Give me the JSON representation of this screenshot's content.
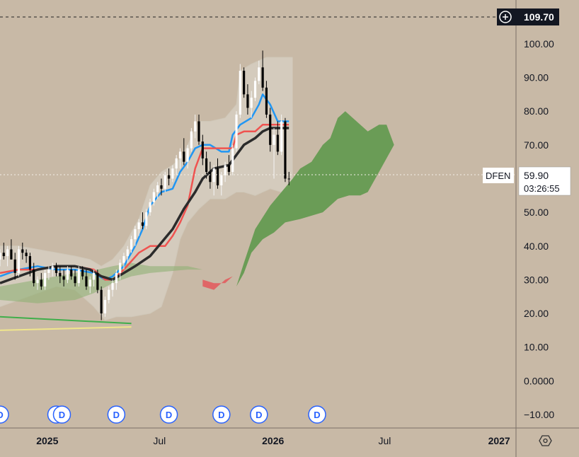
{
  "chart_data": {
    "type": "candlestick",
    "symbol": "DFEN",
    "last_price": "59.90",
    "countdown": "03:26:55",
    "crosshair_price": "109.70",
    "y_ticks": [
      "100.00",
      "90.00",
      "80.00",
      "70.00",
      "60.00",
      "50.00",
      "40.00",
      "30.00",
      "20.00",
      "10.00",
      "0.0000",
      "−10.00"
    ],
    "y_tick_values": [
      100,
      90,
      80,
      70,
      60,
      50,
      40,
      30,
      20,
      10,
      0,
      -10
    ],
    "ylim": [
      -14,
      113
    ],
    "x_ticks": [
      {
        "label": "2025",
        "bold": true,
        "t": 0.52
      },
      {
        "label": "Jul",
        "bold": false,
        "t": 6.5
      },
      {
        "label": "2026",
        "bold": true,
        "t": 12.55
      },
      {
        "label": "Jul",
        "bold": false,
        "t": 18.5
      },
      {
        "label": "2027",
        "bold": true,
        "t": 24.6
      }
    ],
    "dividend_marker_label": "D",
    "dividend_marker_t": [
      -2.0,
      1.0,
      1.3,
      4.2,
      7.0,
      9.8,
      11.8,
      14.9
    ],
    "candles": [
      [
        -2.0,
        36,
        39,
        34,
        38
      ],
      [
        -1.8,
        38,
        41,
        36,
        37
      ],
      [
        -1.6,
        37,
        40,
        34,
        39
      ],
      [
        -1.4,
        39,
        42,
        37,
        36
      ],
      [
        -1.2,
        36,
        38,
        30,
        32
      ],
      [
        -1.0,
        32,
        40,
        31,
        39
      ],
      [
        -0.8,
        39,
        41,
        36,
        38
      ],
      [
        -0.6,
        38,
        39,
        35,
        37
      ],
      [
        -0.4,
        37,
        38,
        31,
        33
      ],
      [
        -0.2,
        33,
        35,
        28,
        29
      ],
      [
        0.0,
        29,
        31,
        27,
        30
      ],
      [
        0.2,
        30,
        32,
        27,
        28
      ],
      [
        0.4,
        28,
        33,
        27,
        32
      ],
      [
        0.6,
        32,
        34,
        30,
        33
      ],
      [
        0.8,
        33,
        35,
        31,
        34
      ],
      [
        1.0,
        34,
        35,
        31,
        32
      ],
      [
        1.2,
        32,
        34,
        29,
        31
      ],
      [
        1.4,
        31,
        33,
        28,
        30
      ],
      [
        1.6,
        30,
        34,
        29,
        33
      ],
      [
        1.8,
        33,
        34,
        30,
        31
      ],
      [
        2.0,
        31,
        33,
        28,
        29
      ],
      [
        2.2,
        29,
        34,
        28,
        33
      ],
      [
        2.4,
        33,
        34,
        30,
        31
      ],
      [
        2.6,
        31,
        33,
        27,
        28
      ],
      [
        2.8,
        28,
        31,
        26,
        30
      ],
      [
        3.0,
        30,
        33,
        28,
        32
      ],
      [
        3.2,
        32,
        33,
        26,
        27
      ],
      [
        3.4,
        27,
        28,
        18,
        20
      ],
      [
        3.6,
        20,
        25,
        19,
        24
      ],
      [
        3.8,
        24,
        28,
        23,
        27
      ],
      [
        4.0,
        27,
        30,
        25,
        29
      ],
      [
        4.2,
        29,
        33,
        27,
        32
      ],
      [
        4.4,
        32,
        36,
        30,
        35
      ],
      [
        4.6,
        35,
        38,
        33,
        37
      ],
      [
        4.8,
        37,
        40,
        35,
        39
      ],
      [
        5.0,
        39,
        43,
        38,
        42
      ],
      [
        5.2,
        42,
        46,
        40,
        45
      ],
      [
        5.4,
        45,
        48,
        43,
        47
      ],
      [
        5.6,
        47,
        50,
        45,
        46
      ],
      [
        5.8,
        46,
        51,
        45,
        50
      ],
      [
        6.0,
        50,
        54,
        49,
        53
      ],
      [
        6.2,
        53,
        57,
        52,
        56
      ],
      [
        6.4,
        56,
        59,
        54,
        58
      ],
      [
        6.6,
        58,
        60,
        55,
        57
      ],
      [
        6.8,
        57,
        62,
        56,
        61
      ],
      [
        7.0,
        61,
        63,
        58,
        60
      ],
      [
        7.2,
        60,
        64,
        59,
        63
      ],
      [
        7.4,
        63,
        67,
        61,
        66
      ],
      [
        7.6,
        66,
        69,
        63,
        68
      ],
      [
        7.8,
        68,
        72,
        64,
        65
      ],
      [
        8.0,
        65,
        70,
        63,
        69
      ],
      [
        8.2,
        69,
        75,
        68,
        74
      ],
      [
        8.4,
        74,
        79,
        72,
        77
      ],
      [
        8.6,
        77,
        79,
        70,
        71
      ],
      [
        8.8,
        71,
        73,
        64,
        66
      ],
      [
        9.0,
        66,
        68,
        60,
        62
      ],
      [
        9.2,
        62,
        65,
        57,
        59
      ],
      [
        9.4,
        59,
        64,
        55,
        63
      ],
      [
        9.6,
        63,
        66,
        57,
        58
      ],
      [
        9.8,
        58,
        62,
        55,
        61
      ],
      [
        10.0,
        61,
        65,
        59,
        64
      ],
      [
        10.2,
        64,
        67,
        61,
        62
      ],
      [
        10.4,
        62,
        70,
        61,
        69
      ],
      [
        10.6,
        69,
        80,
        68,
        79
      ],
      [
        10.8,
        79,
        94,
        78,
        92
      ],
      [
        11.0,
        92,
        93,
        84,
        85
      ],
      [
        11.2,
        85,
        88,
        79,
        81
      ],
      [
        11.4,
        81,
        86,
        78,
        84
      ],
      [
        11.6,
        84,
        90,
        83,
        89
      ],
      [
        11.8,
        89,
        95,
        88,
        93
      ],
      [
        12.0,
        93,
        98,
        86,
        87
      ],
      [
        12.2,
        87,
        89,
        78,
        79
      ],
      [
        12.4,
        79,
        81,
        68,
        70
      ],
      [
        12.6,
        70,
        75,
        60,
        73
      ],
      [
        12.8,
        73,
        77,
        67,
        68
      ],
      [
        13.0,
        68,
        79,
        67,
        77
      ],
      [
        13.2,
        77,
        78,
        59,
        60
      ],
      [
        13.4,
        60,
        62,
        58,
        59.9
      ]
    ],
    "series": [
      {
        "name": "",
        "color": "#2196f3",
        "points": [
          [
            -2,
            31
          ],
          [
            -1,
            33
          ],
          [
            0,
            34
          ],
          [
            1,
            33
          ],
          [
            2,
            33
          ],
          [
            3,
            32
          ],
          [
            3.6,
            30
          ],
          [
            4,
            31
          ],
          [
            4.6,
            34
          ],
          [
            5.2,
            40
          ],
          [
            5.6,
            45
          ],
          [
            6,
            52
          ],
          [
            6.6,
            56
          ],
          [
            7.2,
            57
          ],
          [
            7.6,
            62
          ],
          [
            8,
            65
          ],
          [
            8.4,
            69
          ],
          [
            8.8,
            70
          ],
          [
            9.2,
            70
          ],
          [
            9.8,
            68
          ],
          [
            10.2,
            68
          ],
          [
            10.4,
            73
          ],
          [
            10.8,
            76
          ],
          [
            11.4,
            78
          ],
          [
            11.8,
            82
          ],
          [
            12,
            85
          ],
          [
            12.4,
            82
          ],
          [
            12.8,
            77
          ],
          [
            13.2,
            77
          ],
          [
            13.4,
            77
          ]
        ]
      },
      {
        "name": "",
        "color": "#ef5350",
        "points": [
          [
            -2,
            32
          ],
          [
            -1,
            33
          ],
          [
            0,
            33
          ],
          [
            1,
            34
          ],
          [
            2,
            34
          ],
          [
            3,
            33
          ],
          [
            3.6,
            30
          ],
          [
            4,
            30
          ],
          [
            4.6,
            33
          ],
          [
            5.4,
            38
          ],
          [
            6,
            40
          ],
          [
            6.8,
            40
          ],
          [
            7.2,
            43
          ],
          [
            7.6,
            47
          ],
          [
            8,
            52
          ],
          [
            8.4,
            63
          ],
          [
            8.8,
            69
          ],
          [
            9.2,
            69
          ],
          [
            10.4,
            69
          ],
          [
            10.6,
            73
          ],
          [
            11,
            74
          ],
          [
            11.6,
            74
          ],
          [
            12,
            76
          ],
          [
            12.6,
            76
          ],
          [
            13,
            76
          ],
          [
            13.4,
            76
          ]
        ]
      },
      {
        "name": "",
        "color": "#2b2b2b",
        "points": [
          [
            -2,
            29
          ],
          [
            -1,
            31
          ],
          [
            0,
            33
          ],
          [
            1,
            34
          ],
          [
            2,
            34
          ],
          [
            2.8,
            33
          ],
          [
            3.4,
            31
          ],
          [
            4,
            30
          ],
          [
            4.6,
            32
          ],
          [
            5.2,
            34
          ],
          [
            6,
            37
          ],
          [
            6.6,
            41
          ],
          [
            7.2,
            45
          ],
          [
            7.8,
            51
          ],
          [
            8.4,
            56
          ],
          [
            8.8,
            60
          ],
          [
            9.4,
            63
          ],
          [
            10.2,
            64
          ],
          [
            10.6,
            67
          ],
          [
            11,
            70
          ],
          [
            11.6,
            72
          ],
          [
            12,
            74
          ],
          [
            12.4,
            75
          ],
          [
            12.8,
            75
          ],
          [
            13.4,
            75
          ]
        ]
      }
    ],
    "bollinger_upper": [
      [
        -2,
        40
      ],
      [
        -1,
        40
      ],
      [
        0,
        39
      ],
      [
        1,
        38
      ],
      [
        2,
        37
      ],
      [
        2.8,
        36
      ],
      [
        3.4,
        34
      ],
      [
        4,
        36
      ],
      [
        4.6,
        40
      ],
      [
        5.4,
        48
      ],
      [
        6,
        58
      ],
      [
        6.6,
        62
      ],
      [
        7.2,
        64
      ],
      [
        7.6,
        66
      ],
      [
        8,
        70
      ],
      [
        8.6,
        77
      ],
      [
        9.2,
        77
      ],
      [
        10,
        78
      ],
      [
        10.6,
        82
      ],
      [
        10.8,
        92
      ],
      [
        11.4,
        94
      ],
      [
        12.2,
        96
      ],
      [
        13.6,
        96
      ]
    ],
    "bollinger_lower": [
      [
        -2,
        22
      ],
      [
        -1,
        24
      ],
      [
        0,
        26
      ],
      [
        1,
        28
      ],
      [
        2,
        27
      ],
      [
        3,
        22
      ],
      [
        3.6,
        18
      ],
      [
        4.2,
        19
      ],
      [
        5,
        19
      ],
      [
        6,
        20
      ],
      [
        6.6,
        22
      ],
      [
        7.2,
        32
      ],
      [
        7.6,
        42
      ],
      [
        8,
        47
      ],
      [
        8.6,
        51
      ],
      [
        9.2,
        54
      ],
      [
        10,
        54
      ],
      [
        10.6,
        56
      ],
      [
        11,
        56
      ],
      [
        11.6,
        55
      ],
      [
        12.4,
        57
      ],
      [
        13,
        56
      ],
      [
        13.6,
        57
      ]
    ],
    "cloud_bull": [
      [
        10.6,
        28
      ],
      [
        11,
        35
      ],
      [
        11.6,
        45
      ],
      [
        12.4,
        52
      ],
      [
        13,
        56
      ],
      [
        13.6,
        60
      ],
      [
        14,
        63
      ],
      [
        14.6,
        65
      ],
      [
        15.2,
        70
      ],
      [
        15.6,
        72
      ],
      [
        16,
        78
      ],
      [
        16.4,
        80
      ],
      [
        16.8,
        78
      ],
      [
        17.2,
        76
      ],
      [
        17.6,
        74
      ],
      [
        18.2,
        76
      ],
      [
        18.6,
        76
      ],
      [
        19,
        70
      ],
      [
        18.6,
        66
      ],
      [
        18.2,
        62
      ],
      [
        17.6,
        56
      ],
      [
        17.2,
        55
      ],
      [
        16.6,
        55
      ],
      [
        16,
        54
      ],
      [
        15.2,
        50
      ],
      [
        14.6,
        49
      ],
      [
        14,
        48
      ],
      [
        13.2,
        47
      ],
      [
        12.6,
        44
      ],
      [
        12,
        42
      ],
      [
        11.4,
        38
      ],
      [
        11,
        32
      ]
    ],
    "cloud_bear": [
      [
        8.8,
        30
      ],
      [
        9.4,
        29
      ],
      [
        10,
        29
      ],
      [
        10.4,
        31
      ],
      [
        10,
        30
      ],
      [
        9.4,
        27
      ],
      [
        8.8,
        28
      ]
    ],
    "cloud_old": [
      [
        -2,
        28
      ],
      [
        0,
        30
      ],
      [
        2,
        32
      ],
      [
        3.2,
        33
      ],
      [
        4,
        34
      ],
      [
        5,
        35
      ],
      [
        6,
        34
      ],
      [
        8,
        34
      ],
      [
        8.8,
        33
      ],
      [
        8,
        33
      ],
      [
        6,
        32
      ],
      [
        5,
        31
      ],
      [
        4,
        29
      ],
      [
        3,
        26
      ],
      [
        2,
        24
      ],
      [
        0,
        23
      ],
      [
        -2,
        24
      ]
    ],
    "trend_green": [
      [
        -2,
        19
      ],
      [
        5,
        17
      ]
    ],
    "trend_yellow": [
      [
        -2,
        15
      ],
      [
        5,
        16
      ]
    ],
    "xlim": [
      -2.0,
      25.5
    ],
    "colors": {
      "up": "#ffffff",
      "down": "#000000",
      "cloud_bull": "#6a9c56",
      "cloud_bear": "#e06666",
      "band_fill": "#d8d2c4",
      "text": "#131722"
    }
  }
}
